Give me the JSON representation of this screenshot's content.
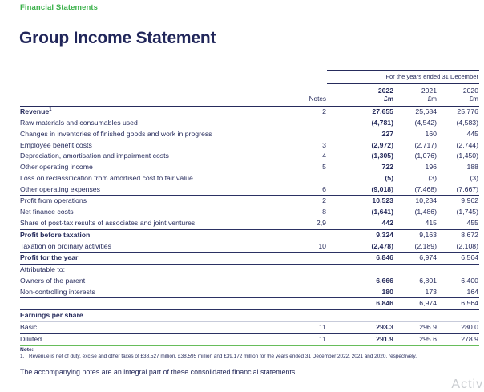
{
  "page": {
    "eyebrow": "Financial Statements",
    "title": "Group Income Statement",
    "footer": "The accompanying notes are an integral part of these consolidated financial statements.",
    "watermark": "Activa",
    "colors": {
      "green": "#3cb14b",
      "navy": "#262b5c",
      "green_rule": "#67bd5b"
    }
  },
  "table": {
    "period_header": "For the years ended 31 December",
    "columns": {
      "notes_label": "Notes",
      "unit_label": "£m",
      "years": [
        "2022",
        "2021",
        "2020"
      ]
    },
    "rows": [
      {
        "label": "Revenue",
        "sup": "1",
        "bold": true,
        "note": "2",
        "v2022": "27,655",
        "v2021": "25,684",
        "v2020": "25,776"
      },
      {
        "label": "Raw materials and consumables used",
        "v2022": "(4,781)",
        "v2021": "(4,542)",
        "v2020": "(4,583)"
      },
      {
        "label": "Changes in inventories of finished goods and work in progress",
        "v2022": "227",
        "v2021": "160",
        "v2020": "445"
      },
      {
        "label": "Employee benefit costs",
        "note": "3",
        "v2022": "(2,972)",
        "v2021": "(2,717)",
        "v2020": "(2,744)"
      },
      {
        "label": "Depreciation, amortisation and impairment costs",
        "note": "4",
        "v2022": "(1,305)",
        "v2021": "(1,076)",
        "v2020": "(1,450)"
      },
      {
        "label": "Other operating income",
        "note": "5",
        "v2022": "722",
        "v2021": "196",
        "v2020": "188"
      },
      {
        "label": "Loss on reclassification from amortised cost to fair value",
        "v2022": "(5)",
        "v2021": "(3)",
        "v2020": "(3)"
      },
      {
        "label": "Other operating expenses",
        "note": "6",
        "v2022": "(9,018)",
        "v2021": "(7,468)",
        "v2020": "(7,667)",
        "border": "navy"
      },
      {
        "label": "Profit from operations",
        "note": "2",
        "v2022": "10,523",
        "v2021": "10,234",
        "v2020": "9,962"
      },
      {
        "label": "Net finance costs",
        "note": "8",
        "v2022": "(1,641)",
        "v2021": "(1,486)",
        "v2020": "(1,745)"
      },
      {
        "label": "Share of post-tax results of associates and joint ventures",
        "note": "2,9",
        "v2022": "442",
        "v2021": "415",
        "v2020": "455",
        "border": "navy"
      },
      {
        "label": "Profit before taxation",
        "bold": true,
        "v2022": "9,324",
        "v2021": "9,163",
        "v2020": "8,672"
      },
      {
        "label": "Taxation on ordinary activities",
        "note": "10",
        "v2022": "(2,478)",
        "v2021": "(2,189)",
        "v2020": "(2,108)",
        "border": "navy"
      },
      {
        "label": "Profit for the year",
        "bold": true,
        "v2022": "6,846",
        "v2021": "6,974",
        "v2020": "6,564",
        "border": "navy"
      },
      {
        "label": "Attributable to:"
      },
      {
        "label": "Owners of the parent",
        "v2022": "6,666",
        "v2021": "6,801",
        "v2020": "6,400"
      },
      {
        "label": "Non-controlling interests",
        "v2022": "180",
        "v2021": "173",
        "v2020": "164",
        "border": "navy"
      },
      {
        "label": "",
        "v2022": "6,846",
        "v2021": "6,974",
        "v2020": "6,564",
        "border": "navy"
      },
      {
        "label": "Earnings per share",
        "bold": true,
        "border": "light"
      },
      {
        "label": "Basic",
        "note": "11",
        "v2022": "293.3",
        "v2021": "296.9",
        "v2020": "280.0",
        "border": "navy"
      },
      {
        "label": "Diluted",
        "note": "11",
        "v2022": "291.9",
        "v2021": "295.6",
        "v2020": "278.9",
        "border": "green"
      }
    ]
  },
  "note": {
    "heading": "Note:",
    "items": [
      {
        "num": "1.",
        "text": "Revenue is net of duty, excise and other taxes of £38,527 million, £38,595 million and £39,172 million for the years ended 31 December 2022, 2021 and 2020, respectively."
      }
    ]
  }
}
